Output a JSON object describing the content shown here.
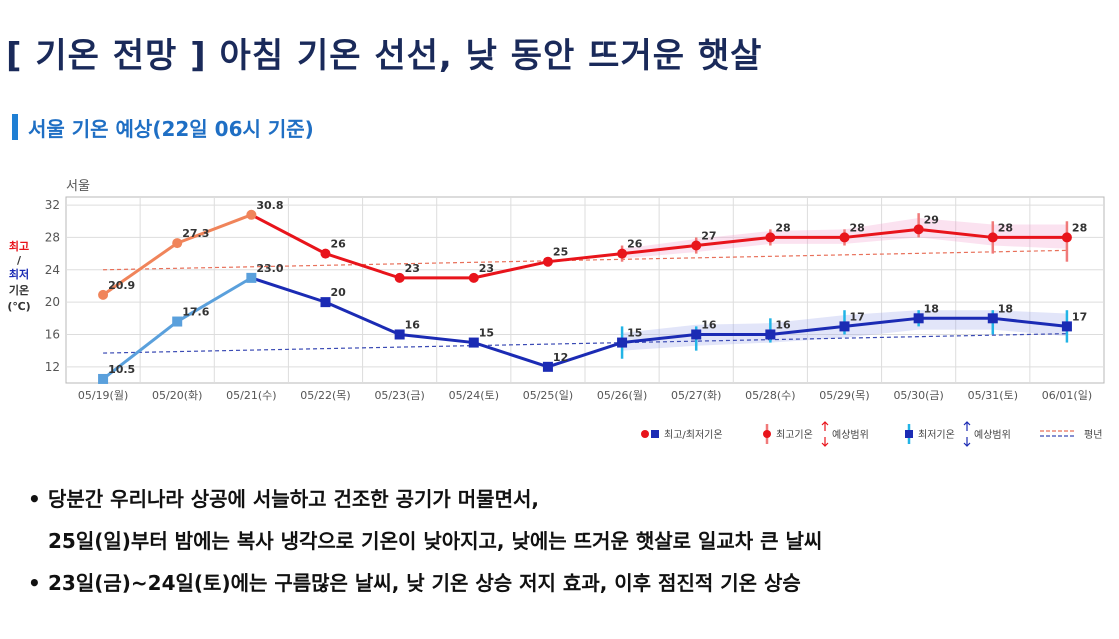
{
  "title": "[ 기온 전망 ] 아침 기온 선선, 낮 동안 뜨거운 햇살",
  "subtitle": "서울 기온 예상(22일 06시 기준)",
  "chart_data": {
    "type": "line",
    "title": "서울",
    "ylabel_top": "최고",
    "ylabel_sep": "/",
    "ylabel_mid": "최저",
    "ylabel_bottom": "기온",
    "ylabel_unit": "(℃)",
    "ylim": [
      10,
      33
    ],
    "yticks": [
      12,
      16,
      20,
      24,
      28,
      32
    ],
    "grid": true,
    "categories": [
      "05/19(월)",
      "05/20(화)",
      "05/21(수)",
      "05/22(목)",
      "05/23(금)",
      "05/24(토)",
      "05/25(일)",
      "05/26(월)",
      "05/27(화)",
      "05/28(수)",
      "05/29(목)",
      "05/30(금)",
      "05/31(토)",
      "06/01(일)"
    ],
    "series": [
      {
        "name": "최고기온",
        "color": "#e8141b",
        "observed_color": "#f0845a",
        "observed_count": 3,
        "values": [
          20.9,
          27.3,
          30.8,
          26,
          23,
          23,
          25,
          26,
          27,
          28,
          28,
          29,
          28,
          28
        ],
        "labels": [
          "20.9",
          "27.3",
          "30.8",
          "26",
          "23",
          "23",
          "25",
          "26",
          "27",
          "28",
          "28",
          "29",
          "28",
          "28"
        ],
        "range_low": [
          null,
          null,
          null,
          null,
          null,
          null,
          null,
          25,
          26,
          27,
          27,
          28,
          26,
          25
        ],
        "range_high": [
          null,
          null,
          null,
          null,
          null,
          null,
          null,
          27,
          28,
          29,
          29,
          31,
          30,
          30
        ],
        "band_low": [
          null,
          null,
          null,
          null,
          null,
          null,
          null,
          25.4,
          26.2,
          27.2,
          27.2,
          28,
          27,
          26.6
        ],
        "band_high": [
          null,
          null,
          null,
          null,
          null,
          null,
          null,
          26.6,
          27.8,
          28.8,
          29,
          30.4,
          29.6,
          29.6
        ]
      },
      {
        "name": "최저기온",
        "color": "#1b2bb4",
        "observed_color": "#5aa0dc",
        "observed_count": 3,
        "values": [
          10.5,
          17.6,
          23.0,
          20,
          16,
          15,
          12,
          15,
          16,
          16,
          17,
          18,
          18,
          17
        ],
        "labels": [
          "10.5",
          "17.6",
          "23.0",
          "20",
          "16",
          "15",
          "12",
          "15",
          "16",
          "16",
          "17",
          "18",
          "18",
          "17"
        ],
        "range_low": [
          null,
          null,
          null,
          null,
          null,
          null,
          null,
          13,
          14,
          15,
          16,
          17,
          16,
          15
        ],
        "range_high": [
          null,
          null,
          null,
          null,
          null,
          null,
          null,
          17,
          17,
          18,
          19,
          19,
          19,
          19
        ],
        "band_low": [
          null,
          null,
          null,
          null,
          null,
          null,
          null,
          14,
          14.6,
          15,
          15.6,
          16.6,
          16.6,
          15.8
        ],
        "band_high": [
          null,
          null,
          null,
          null,
          null,
          null,
          null,
          16.2,
          17.2,
          17.4,
          18.4,
          19,
          19,
          18.6
        ]
      }
    ],
    "normal": [
      {
        "name": "평년 최고",
        "color": "#e8705a",
        "start": 24.0,
        "end": 26.4
      },
      {
        "name": "평년 최저",
        "color": "#3a4ab4",
        "start": 13.7,
        "end": 16.1
      }
    ],
    "legend": {
      "item1": "최고/최저기온",
      "item2a": "최고기온",
      "item2b": "예상범위",
      "item3a": "최저기온",
      "item3b": "예상범위",
      "item4": "평년"
    },
    "legend_position": "bottom-right"
  },
  "bullets": {
    "b1_line1": "당분간 우리나라 상공에 서늘하고 건조한 공기가 머물면서,",
    "b1_line2": "25일(일)부터 밤에는 복사 냉각으로 기온이 낮아지고, 낮에는 뜨거운 햇살로 일교차 큰 날씨",
    "b2": "23일(금)~24일(토)에는 구름많은 날씨, 낮 기온 상승 저지 효과, 이후 점진적 기온 상승",
    "marker": "•"
  }
}
